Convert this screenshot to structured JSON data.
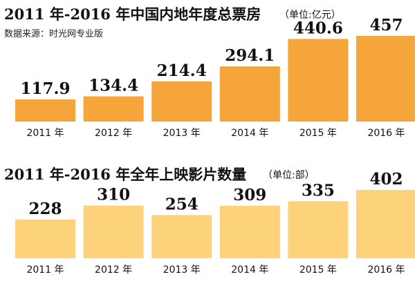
{
  "charts": [
    {
      "title": "2011 年-2016 年中国内地年度总票房",
      "unit": "（单位:亿元）",
      "source": "数据来源：时光网专业版"
    },
    {
      "title": "2011 年-2016 年全年上映影片数量",
      "unit": "（单位:部）",
      "source": ""
    }
  ],
  "chart_data": [
    {
      "type": "bar",
      "title": "2011 年-2016 年中国内地年度总票房",
      "categories": [
        "2011 年",
        "2012 年",
        "2013 年",
        "2014 年",
        "2015 年",
        "2016 年"
      ],
      "values": [
        117.9,
        134.4,
        214.4,
        294.1,
        440.6,
        457
      ],
      "value_labels": [
        "117.9",
        "134.4",
        "214.4",
        "294.1",
        "440.6",
        "457"
      ],
      "unit": "亿元",
      "bar_color": "#f5a53a",
      "ylim": [
        0,
        457
      ],
      "grid": false,
      "note": ""
    },
    {
      "type": "bar",
      "title": "2011 年-2016 年全年上映影片数量",
      "categories": [
        "2011 年",
        "2012 年",
        "2013 年",
        "2014 年",
        "2015 年",
        "2016 年"
      ],
      "values": [
        228,
        310,
        254,
        309,
        335,
        402
      ],
      "value_labels": [
        "228",
        "310",
        "254",
        "309",
        "335",
        "402"
      ],
      "unit": "部",
      "bar_color": "#fcd27a",
      "ylim": [
        0,
        402
      ],
      "grid": false
    }
  ]
}
